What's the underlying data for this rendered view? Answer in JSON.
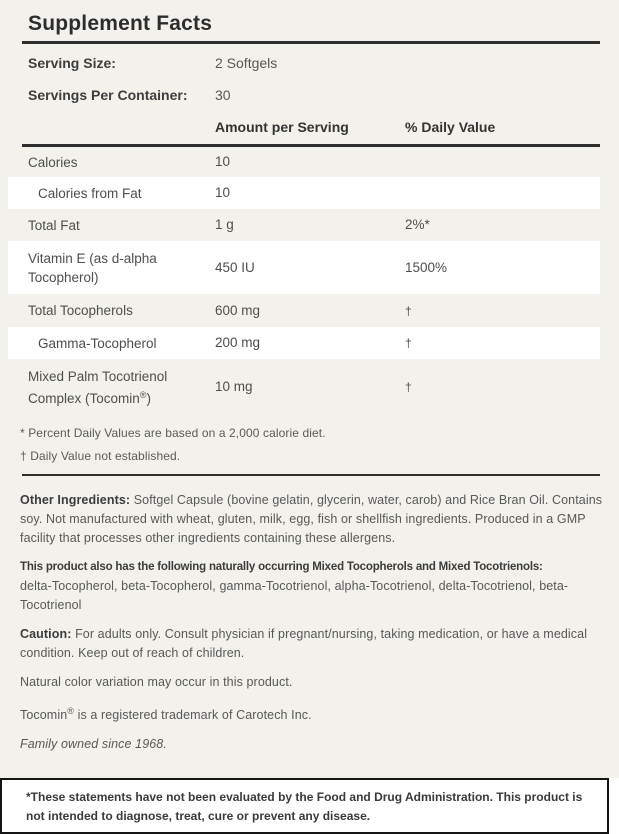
{
  "colors": {
    "background": "#f2f1ec",
    "stripe": "#ffffff",
    "rule": "#2e2e2e",
    "heading_text": "#2d2d2d",
    "body_text": "#585858"
  },
  "header": {
    "title": "Supplement Facts"
  },
  "serving": {
    "rows": [
      {
        "label": "Serving Size:",
        "value": "2 Softgels"
      },
      {
        "label": "Servings Per Container:",
        "value": "30"
      }
    ],
    "columns": {
      "amount": "Amount per Serving",
      "daily_value": "% Daily Value"
    }
  },
  "table": {
    "rows": [
      {
        "label": "Calories",
        "amount": "10",
        "dv": ""
      },
      {
        "label": "Calories from Fat",
        "amount": "10",
        "dv": ""
      },
      {
        "label": "Total Fat",
        "amount": "1 g",
        "dv": "2%*"
      },
      {
        "label": "Vitamin E (as d-alpha Tocopherol)",
        "amount": "450 IU",
        "dv": "1500%"
      },
      {
        "label": "Total Tocopherols",
        "amount": "600 mg",
        "dv": "†"
      },
      {
        "label": "Gamma-Tocopherol",
        "amount": "200 mg",
        "dv": "†"
      },
      {
        "label": "Mixed Palm Tocotrienol Complex (Tocomin",
        "label_sup": "®",
        "label_end": ")",
        "amount": "10 mg",
        "dv": "†"
      }
    ]
  },
  "footnotes": {
    "percent": "* Percent Daily Values are based on a 2,000 calorie diet.",
    "dagger": "† Daily Value not established."
  },
  "info": {
    "other_ingredients_label": "Other Ingredients:",
    "other_ingredients_text": "Softgel Capsule (bovine gelatin, glycerin, water, carob) and Rice Bran Oil. Contains soy. Not manufactured with wheat, gluten, milk, egg, fish or shellfish ingredients. Produced in a GMP facility that processes other ingredients containing these allergens.",
    "naturally_occurring_label": "This product also has the following naturally occurring Mixed Tocopherols and Mixed Tocotrienols:",
    "naturally_occurring_text": "delta-Tocopherol, beta-Tocopherol, gamma-Tocotrienol, alpha-Tocotrienol, delta-Tocotrienol, beta-Tocotrienol",
    "caution_label": "Caution:",
    "caution_text": "For adults only. Consult physician if pregnant/nursing, taking medication, or have a medical condition. Keep out of reach of children.",
    "color_note": "Natural color variation may occur in this product.",
    "trademark_pre": "Tocomin",
    "trademark_sup": "®",
    "trademark_post": "is a registered trademark of Carotech Inc.",
    "tagline": "Family owned since 1968."
  },
  "disclaimer": "*These statements have not been evaluated by the Food and Drug Administration. This product is not intended to diagnose, treat, cure or prevent any disease."
}
